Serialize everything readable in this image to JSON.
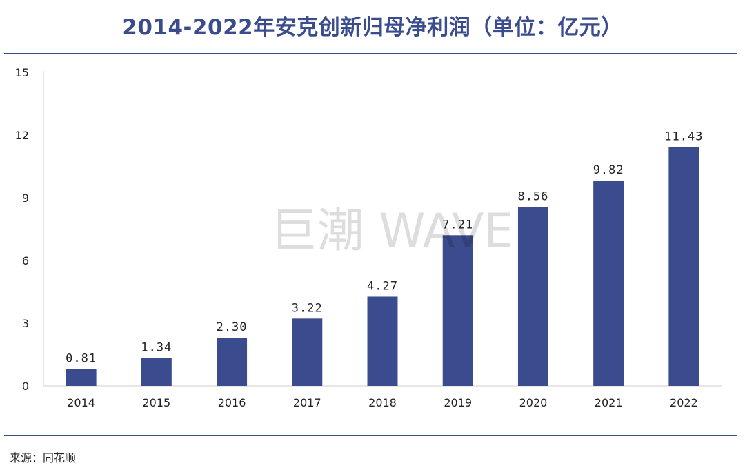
{
  "header": {
    "title": "2014-2022年安克创新归母净利润（单位：亿元）"
  },
  "footer": {
    "source": "来源：同花顺"
  },
  "watermark": {
    "text": "巨潮 WAVE"
  },
  "colors": {
    "bar": "#3b4c8e",
    "rule": "#3b4c8e",
    "title": "#3b4c8e"
  },
  "chart_data": {
    "type": "bar",
    "title": "2014-2022年安克创新归母净利润（单位：亿元）",
    "xlabel": "",
    "ylabel": "",
    "categories": [
      "2014",
      "2015",
      "2016",
      "2017",
      "2018",
      "2019",
      "2020",
      "2021",
      "2022"
    ],
    "values": [
      0.81,
      1.34,
      2.3,
      3.22,
      4.27,
      7.21,
      8.56,
      9.82,
      11.43
    ],
    "value_labels": [
      "0.81",
      "1.34",
      "2.30",
      "3.22",
      "4.27",
      "7.21",
      "8.56",
      "9.82",
      "11.43"
    ],
    "ylim": [
      0,
      15
    ],
    "yticks": [
      0,
      3,
      6,
      9,
      12,
      15
    ],
    "grid": false,
    "legend": "none"
  }
}
